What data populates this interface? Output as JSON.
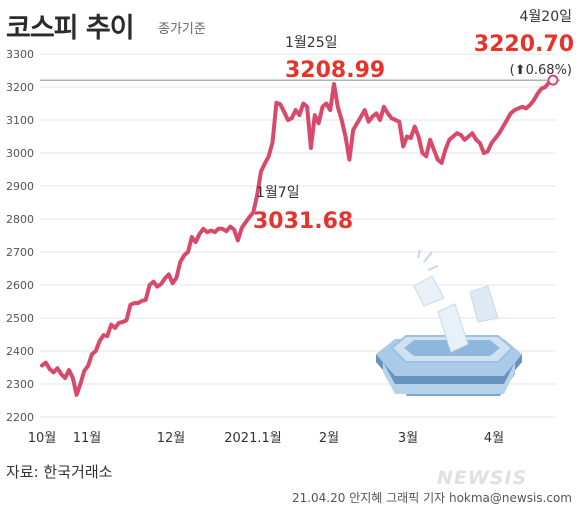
{
  "header": {
    "title": "코스피 추이",
    "subtitle": "종가기준"
  },
  "footer": {
    "source": "자료: 한국거래소",
    "credit": "21.04.20 안지혜 그래픽 기자 hokma@newsis.com",
    "watermark": "NEWSIS"
  },
  "chart_data": {
    "type": "line",
    "title": "코스피 추이",
    "subtitle": "종가기준",
    "ylim": [
      2200,
      3300
    ],
    "yticks": [
      2200,
      2300,
      2400,
      2500,
      2600,
      2700,
      2800,
      2900,
      3000,
      3100,
      3200,
      3300
    ],
    "xticks": [
      "10월",
      "11월",
      "12월",
      "2021.1월",
      "2월",
      "3월",
      "4월"
    ],
    "grid": true,
    "line_color": "#d9496a",
    "highlight_color": "#e4342c",
    "series": [
      {
        "values": [
          2356,
          2365,
          2345,
          2335,
          2348,
          2330,
          2318,
          2342,
          2320,
          2267,
          2300,
          2340,
          2355,
          2390,
          2400,
          2430,
          2448,
          2445,
          2480,
          2470,
          2485,
          2488,
          2493,
          2540,
          2545,
          2545,
          2552,
          2555,
          2600,
          2610,
          2595,
          2603,
          2620,
          2632,
          2605,
          2622,
          2670,
          2690,
          2700,
          2745,
          2730,
          2755,
          2770,
          2760,
          2765,
          2760,
          2771,
          2770,
          2763,
          2777,
          2768,
          2735,
          2773,
          2790,
          2806,
          2820,
          2873,
          2944,
          2968,
          2990,
          3031.68,
          3152,
          3148,
          3125,
          3100,
          3105,
          3130,
          3115,
          3150,
          3140,
          3015,
          3115,
          3090,
          3140,
          3150,
          3130,
          3208.99,
          3140,
          3100,
          3050,
          2980,
          3070,
          3090,
          3110,
          3130,
          3095,
          3110,
          3120,
          3100,
          3140,
          3120,
          3105,
          3100,
          3095,
          3020,
          3050,
          3045,
          3080,
          3050,
          3000,
          2990,
          3040,
          3010,
          2980,
          2970,
          3010,
          3040,
          3050,
          3060,
          3055,
          3040,
          3050,
          3060,
          3040,
          3030,
          3000,
          3005,
          3030,
          3045,
          3060,
          3080,
          3100,
          3120,
          3130,
          3135,
          3140,
          3135,
          3145,
          3160,
          3180,
          3195,
          3200,
          3215,
          3220.7
        ]
      }
    ],
    "annotations": [
      {
        "date": "1월7일",
        "value": "3031.68"
      },
      {
        "date": "1월25일",
        "value": "3208.99"
      },
      {
        "date": "4월20일",
        "value": "3220.70",
        "change": "(⬆0.68%)"
      }
    ]
  }
}
